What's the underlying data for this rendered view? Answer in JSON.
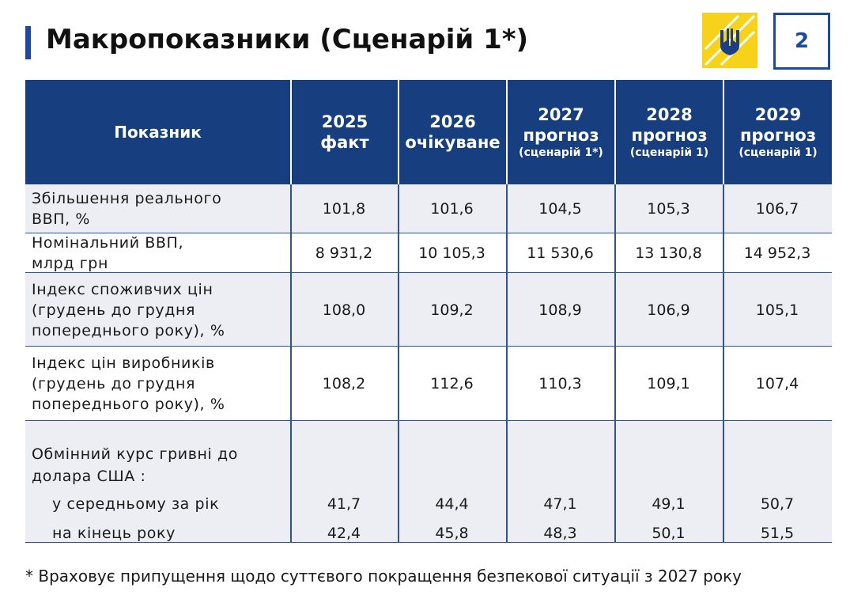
{
  "header": {
    "title": "Макропоказники (Сценарій 1*)",
    "page_number": "2"
  },
  "table": {
    "columns": [
      {
        "label": "Показник"
      },
      {
        "year": "2025",
        "kind": "факт"
      },
      {
        "year": "2026",
        "kind": "очікуване"
      },
      {
        "year": "2027",
        "kind": "прогноз",
        "note": "(сценарій 1*)"
      },
      {
        "year": "2028",
        "kind": "прогноз",
        "note": "(сценарій 1)"
      },
      {
        "year": "2029",
        "kind": "прогноз",
        "note": "(сценарій 1)"
      }
    ],
    "rows": [
      {
        "label": [
          "Збільшення реального",
          "ВВП, %"
        ],
        "values": [
          "101,8",
          "101,6",
          "104,5",
          "105,3",
          "106,7"
        ]
      },
      {
        "label": [
          "Номінальний ВВП,",
          "млрд грн"
        ],
        "values": [
          "8 931,2",
          "10 105,3",
          "11 530,6",
          "13 130,8",
          "14 952,3"
        ]
      },
      {
        "label": [
          "Індекс споживчих цін",
          "(грудень до грудня",
          "попереднього року), %"
        ],
        "values": [
          "108,0",
          "109,2",
          "108,9",
          "106,9",
          "105,1"
        ]
      },
      {
        "label": [
          "Індекс цін виробників",
          "(грудень до грудня",
          "попереднього року), %"
        ],
        "values": [
          "108,2",
          "112,6",
          "110,3",
          "109,1",
          "107,4"
        ]
      }
    ],
    "exchange_rate": {
      "label": [
        "Обмінний курс гривні до",
        "долара США :"
      ],
      "rows": [
        {
          "label": "у середньому за рік",
          "values": [
            "41,7",
            "44,4",
            "47,1",
            "49,1",
            "50,7"
          ]
        },
        {
          "label": "на кінець року",
          "values": [
            "42,4",
            "45,8",
            "48,3",
            "50,1",
            "51,5"
          ]
        }
      ]
    }
  },
  "footnote": "* Враховує припущення щодо суттєвого покращення безпекової ситуації з 2027 року"
}
